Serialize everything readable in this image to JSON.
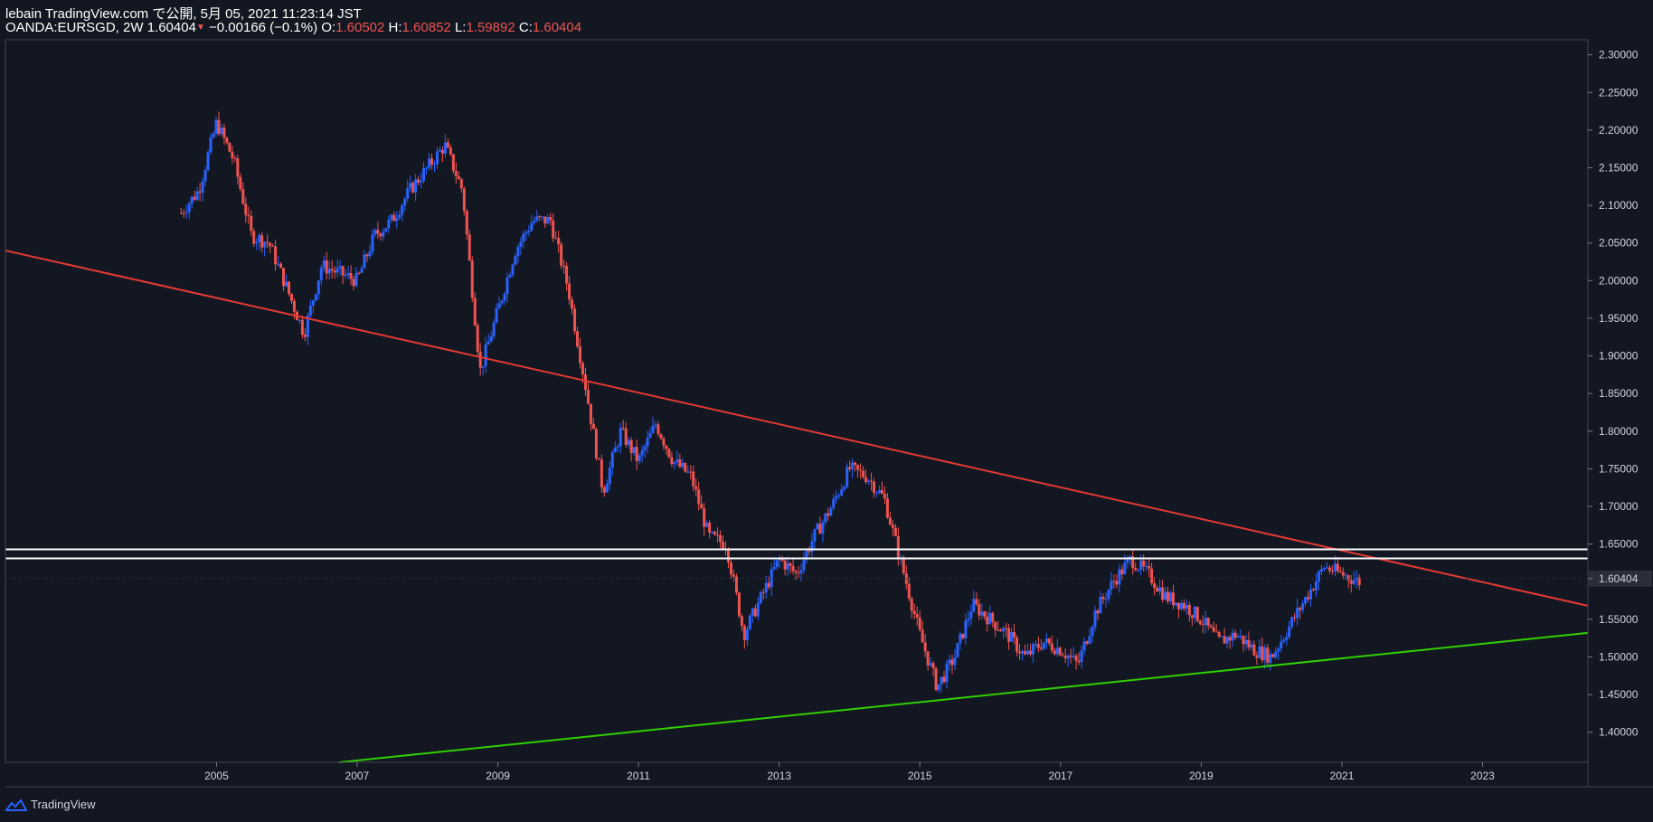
{
  "header": {
    "publish_line": "lebain TradingView.com で公開, 5月 05, 2021 11:23:14 JST",
    "symbol": "OANDA:EURSGD, 2W",
    "last": "1.60404",
    "change_arrow": "▼",
    "change": "−0.00166 (−0.1%)",
    "o_label": "O:",
    "o_value": "1.60502",
    "h_label": "H:",
    "h_value": "1.60852",
    "l_label": "L:",
    "l_value": "1.59892",
    "c_label": "C:",
    "c_value": "1.60404"
  },
  "footer": {
    "brand": "TradingView",
    "logo_icon": "tradingview-logo-icon"
  },
  "colors": {
    "background": "#131722",
    "up_candle": "#2962ff",
    "down_candle": "#ef5350",
    "resistance_line": "#e53935",
    "support_line": "#30d000",
    "zone_line": "#ffffff",
    "price_label_bg": "#2a2e39"
  },
  "chart_data": {
    "type": "candlestick",
    "x_axis": {
      "type": "date",
      "range": [
        "2002-01-01",
        "2024-07-01"
      ],
      "ticks": [
        "2005",
        "2007",
        "2009",
        "2011",
        "2013",
        "2015",
        "2017",
        "2019",
        "2021",
        "2023"
      ]
    },
    "y_axis": {
      "range": [
        1.36,
        2.32
      ],
      "ticks": [
        "2.30000",
        "2.25000",
        "2.20000",
        "2.15000",
        "2.10000",
        "2.05000",
        "2.00000",
        "1.95000",
        "1.90000",
        "1.85000",
        "1.80000",
        "1.75000",
        "1.70000",
        "1.65000",
        "1.60404",
        "1.55000",
        "1.50000",
        "1.45000",
        "1.40000"
      ]
    },
    "last_price": "1.60404",
    "grid": false,
    "close_path": [
      [
        "2004-07-01",
        2.09
      ],
      [
        "2004-10-01",
        2.12
      ],
      [
        "2005-01-01",
        2.21
      ],
      [
        "2005-04-01",
        2.16
      ],
      [
        "2005-07-01",
        2.06
      ],
      [
        "2005-10-01",
        2.05
      ],
      [
        "2006-01-01",
        1.99
      ],
      [
        "2006-04-01",
        1.93
      ],
      [
        "2006-07-01",
        2.02
      ],
      [
        "2006-10-01",
        2.01
      ],
      [
        "2007-01-01",
        2.0
      ],
      [
        "2007-04-01",
        2.06
      ],
      [
        "2007-07-01",
        2.08
      ],
      [
        "2007-10-01",
        2.12
      ],
      [
        "2008-01-01",
        2.15
      ],
      [
        "2008-04-01",
        2.18
      ],
      [
        "2008-07-01",
        2.12
      ],
      [
        "2008-10-01",
        1.88
      ],
      [
        "2009-01-01",
        1.96
      ],
      [
        "2009-04-01",
        2.04
      ],
      [
        "2009-07-01",
        2.08
      ],
      [
        "2009-10-01",
        2.08
      ],
      [
        "2010-01-01",
        1.99
      ],
      [
        "2010-04-01",
        1.86
      ],
      [
        "2010-07-01",
        1.72
      ],
      [
        "2010-10-01",
        1.8
      ],
      [
        "2011-01-01",
        1.76
      ],
      [
        "2011-04-01",
        1.81
      ],
      [
        "2011-07-01",
        1.76
      ],
      [
        "2011-10-01",
        1.74
      ],
      [
        "2012-01-01",
        1.66
      ],
      [
        "2012-04-01",
        1.65
      ],
      [
        "2012-07-01",
        1.53
      ],
      [
        "2012-10-01",
        1.58
      ],
      [
        "2013-01-01",
        1.63
      ],
      [
        "2013-04-01",
        1.61
      ],
      [
        "2013-07-01",
        1.66
      ],
      [
        "2013-10-01",
        1.7
      ],
      [
        "2014-01-01",
        1.75
      ],
      [
        "2014-04-01",
        1.74
      ],
      [
        "2014-07-01",
        1.71
      ],
      [
        "2014-10-01",
        1.62
      ],
      [
        "2015-01-01",
        1.53
      ],
      [
        "2015-04-01",
        1.46
      ],
      [
        "2015-07-01",
        1.5
      ],
      [
        "2015-10-01",
        1.57
      ],
      [
        "2016-01-01",
        1.55
      ],
      [
        "2016-04-01",
        1.53
      ],
      [
        "2016-07-01",
        1.5
      ],
      [
        "2016-10-01",
        1.52
      ],
      [
        "2017-01-01",
        1.51
      ],
      [
        "2017-04-01",
        1.49
      ],
      [
        "2017-07-01",
        1.56
      ],
      [
        "2017-10-01",
        1.6
      ],
      [
        "2018-01-01",
        1.63
      ],
      [
        "2018-04-01",
        1.61
      ],
      [
        "2018-07-01",
        1.58
      ],
      [
        "2018-10-01",
        1.57
      ],
      [
        "2019-01-01",
        1.55
      ],
      [
        "2019-04-01",
        1.52
      ],
      [
        "2019-07-01",
        1.53
      ],
      [
        "2019-10-01",
        1.51
      ],
      [
        "2020-01-01",
        1.5
      ],
      [
        "2020-04-01",
        1.54
      ],
      [
        "2020-07-01",
        1.58
      ],
      [
        "2020-10-01",
        1.62
      ],
      [
        "2021-01-01",
        1.61
      ],
      [
        "2021-04-01",
        1.6
      ]
    ],
    "annotations": [
      {
        "type": "trend_line",
        "name": "resistance",
        "points": [
          [
            "2002-01-01",
            2.04
          ],
          [
            "2024-07-01",
            1.568
          ]
        ]
      },
      {
        "type": "trend_line",
        "name": "support",
        "points": [
          [
            "2006-10-01",
            1.36
          ],
          [
            "2024-07-01",
            1.532
          ]
        ]
      },
      {
        "type": "horizontal_line",
        "name": "zone-top",
        "value": 1.643
      },
      {
        "type": "horizontal_line",
        "name": "zone-bottom",
        "value": 1.631
      }
    ]
  }
}
